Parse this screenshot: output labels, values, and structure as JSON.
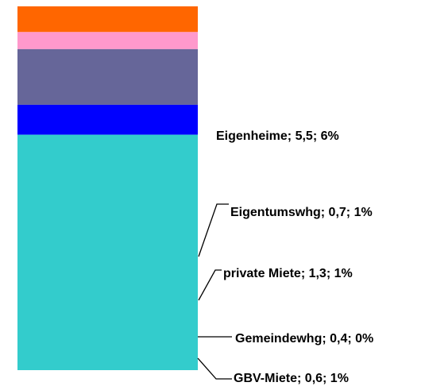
{
  "chart_data": {
    "type": "stacked-bar",
    "ylim": [
      0,
      8.5
    ],
    "series": [
      {
        "name": "Eigenheime",
        "color": "#33CCCC",
        "values": [
          5.5
        ],
        "value_labels": [
          "Eigenheime; 5,5; 6%"
        ]
      },
      {
        "name": "Eigentumswhg",
        "color": "#0000FF",
        "values": [
          0.7
        ],
        "value_labels": [
          "Eigentumswhg; 0,7; 1%"
        ]
      },
      {
        "name": "private Miete",
        "color": "#666699",
        "values": [
          1.3
        ],
        "value_labels": [
          "private Miete; 1,3; 1%"
        ]
      },
      {
        "name": "Gemeindewhg",
        "color": "#FF99CC",
        "values": [
          0.4
        ],
        "value_labels": [
          "Gemeindewhg; 0,4; 0%"
        ]
      },
      {
        "name": "GBV-Miete",
        "color": "#FF6600",
        "values": [
          0.6
        ],
        "value_labels": [
          "GBV-Miete; 0,6; 1%"
        ]
      }
    ]
  }
}
